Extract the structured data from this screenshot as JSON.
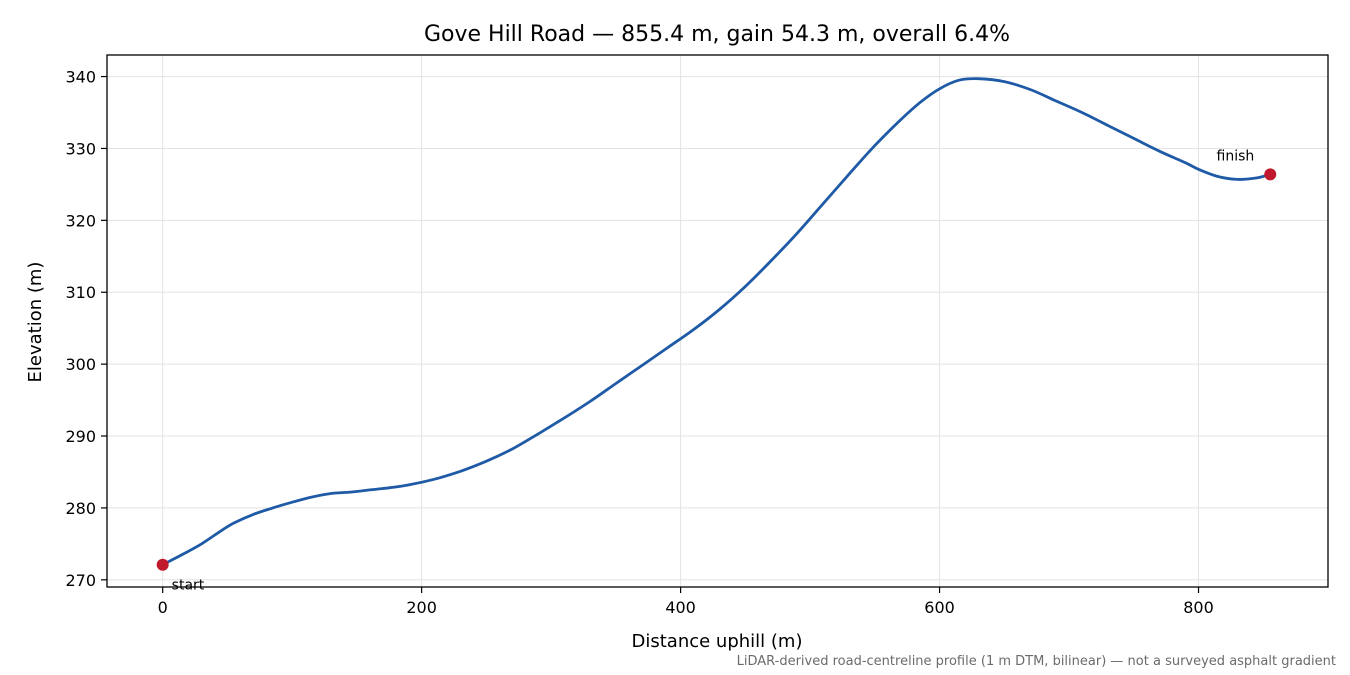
{
  "chart_data": {
    "type": "line",
    "title": "Gove Hill Road — 855.4 m, gain 54.3 m, overall 6.4%",
    "xlabel": "Distance uphill (m)",
    "ylabel": "Elevation (m)",
    "xlim": [
      -43,
      900
    ],
    "ylim": [
      269,
      343
    ],
    "xticks": [
      0,
      200,
      400,
      600,
      800
    ],
    "yticks": [
      270,
      280,
      290,
      300,
      310,
      320,
      330,
      340
    ],
    "grid": true,
    "series": [
      {
        "color": "#1f5aa6",
        "x": [
          0,
          15,
          30,
          45,
          55,
          70,
          85,
          100,
          115,
          130,
          145,
          160,
          175,
          190,
          210,
          230,
          250,
          270,
          290,
          310,
          330,
          350,
          370,
          390,
          410,
          430,
          450,
          470,
          490,
          510,
          530,
          550,
          570,
          585,
          600,
          615,
          630,
          650,
          670,
          690,
          710,
          730,
          750,
          770,
          790,
          800,
          815,
          830,
          845,
          855.4
        ],
        "y": [
          272.1,
          273.5,
          275.0,
          276.8,
          277.9,
          279.1,
          280.0,
          280.8,
          281.5,
          282.0,
          282.2,
          282.5,
          282.8,
          283.2,
          284.0,
          285.1,
          286.5,
          288.2,
          290.3,
          292.5,
          294.8,
          297.3,
          299.8,
          302.3,
          304.8,
          307.6,
          310.8,
          314.4,
          318.2,
          322.3,
          326.4,
          330.4,
          334.0,
          336.4,
          338.3,
          339.5,
          339.7,
          339.3,
          338.2,
          336.6,
          335.0,
          333.2,
          331.4,
          329.6,
          328.0,
          327.1,
          326.1,
          325.7,
          325.9,
          326.4
        ]
      }
    ],
    "markers": [
      {
        "label": "start",
        "x": 0,
        "y": 272.1,
        "color": "#c0192d"
      },
      {
        "label": "finish",
        "x": 855.4,
        "y": 326.4,
        "color": "#c0192d"
      }
    ],
    "footnote": "LiDAR-derived road-centreline profile (1 m DTM, bilinear) — not a surveyed asphalt gradient"
  }
}
